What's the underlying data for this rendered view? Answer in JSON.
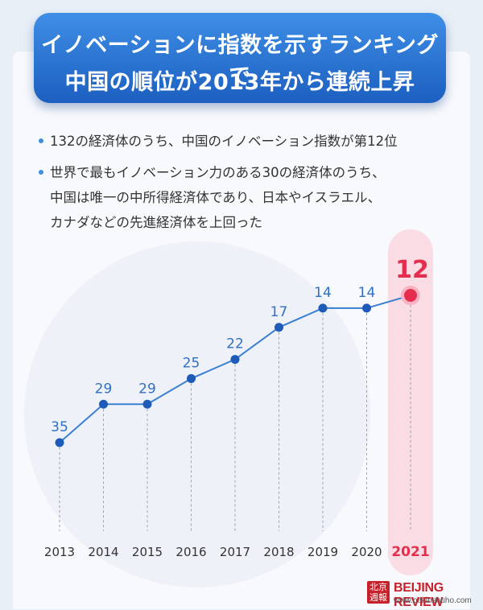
{
  "header": {
    "title_line1": "イノベーションに指数を示すランキングで",
    "title_line2": "中国の順位が2013年から連続上昇"
  },
  "bullets": [
    "132の経済体のうち、中国のイノベーション指数が第12位",
    "世界で最もイノベーション力のある30の経済体のうち、\n中国は唯一の中所得経済体であり、日本やイスラエル、\nカナダなどの先進経済体を上回った"
  ],
  "chart_data": {
    "type": "line",
    "x": [
      "2013",
      "2014",
      "2015",
      "2016",
      "2017",
      "2018",
      "2019",
      "2020",
      "2021"
    ],
    "values": [
      35,
      29,
      29,
      25,
      22,
      17,
      14,
      14,
      12
    ],
    "data_labels": [
      "35",
      "29",
      "29",
      "25",
      "22",
      "17",
      "14",
      "14",
      "12"
    ],
    "y_inverted": true,
    "highlight": "2021",
    "ylim": [
      10,
      37
    ],
    "grid": false
  },
  "colors": {
    "line": "#3b7fd0",
    "marker": "#1e5bb8",
    "label": "#2f6fc4",
    "highlight": "#e52d4d",
    "highlight_band": "#fbd3dc",
    "banner": "#2a74d4"
  },
  "logo": {
    "seal_text": "北京週報",
    "name": "BEIJING REVIEW",
    "url": "www.pekinshuho.com"
  }
}
